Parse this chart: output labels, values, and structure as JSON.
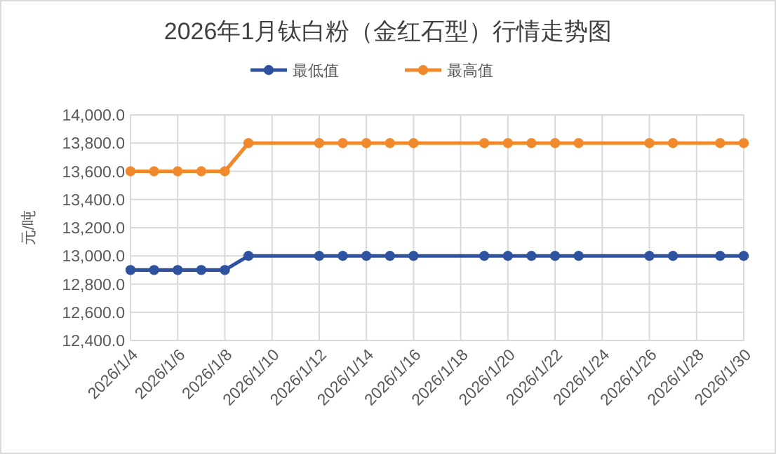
{
  "chart_data": {
    "type": "line",
    "title": "2026年1月钛白粉（金红石型）行情走势图",
    "ylabel": "元/吨",
    "x": [
      "2026-01-04",
      "2026-01-05",
      "2026-01-06",
      "2026-01-07",
      "2026-01-08",
      "2026-01-09",
      "2026-01-12",
      "2026-01-13",
      "2026-01-14",
      "2026-01-15",
      "2026-01-16",
      "2026-01-19",
      "2026-01-20",
      "2026-01-21",
      "2026-01-22",
      "2026-01-23",
      "2026-01-26",
      "2026-01-27",
      "2026-01-29",
      "2026-01-30"
    ],
    "series": [
      {
        "name": "最低值",
        "color": "#2f52a0",
        "values": [
          12900,
          12900,
          12900,
          12900,
          12900,
          13000,
          13000,
          13000,
          13000,
          13000,
          13000,
          13000,
          13000,
          13000,
          13000,
          13000,
          13000,
          13000,
          13000,
          13000
        ]
      },
      {
        "name": "最高值",
        "color": "#f08a2c",
        "values": [
          13600,
          13600,
          13600,
          13600,
          13600,
          13800,
          13800,
          13800,
          13800,
          13800,
          13800,
          13800,
          13800,
          13800,
          13800,
          13800,
          13800,
          13800,
          13800,
          13800
        ]
      }
    ],
    "xlim": [
      "2026-01-04",
      "2026-01-30"
    ],
    "xticks": [
      {
        "value": "2026-01-04",
        "label": "2026/1/4"
      },
      {
        "value": "2026-01-06",
        "label": "2026/1/6"
      },
      {
        "value": "2026-01-08",
        "label": "2026/1/8"
      },
      {
        "value": "2026-01-10",
        "label": "2026/1/10"
      },
      {
        "value": "2026-01-12",
        "label": "2026/1/12"
      },
      {
        "value": "2026-01-14",
        "label": "2026/1/14"
      },
      {
        "value": "2026-01-16",
        "label": "2026/1/16"
      },
      {
        "value": "2026-01-18",
        "label": "2026/1/18"
      },
      {
        "value": "2026-01-20",
        "label": "2026/1/20"
      },
      {
        "value": "2026-01-22",
        "label": "2026/1/22"
      },
      {
        "value": "2026-01-24",
        "label": "2026/1/24"
      },
      {
        "value": "2026-01-26",
        "label": "2026/1/26"
      },
      {
        "value": "2026-01-28",
        "label": "2026/1/28"
      },
      {
        "value": "2026-01-30",
        "label": "2026/1/30"
      }
    ],
    "ylim": [
      12400,
      14000
    ],
    "yticks": [
      {
        "value": 12400,
        "label": "12,400.0"
      },
      {
        "value": 12600,
        "label": "12,600.0"
      },
      {
        "value": 12800,
        "label": "12,800.0"
      },
      {
        "value": 13000,
        "label": "13,000.0"
      },
      {
        "value": 13200,
        "label": "13,200.0"
      },
      {
        "value": 13400,
        "label": "13,400.0"
      },
      {
        "value": 13600,
        "label": "13,600.0"
      },
      {
        "value": 13800,
        "label": "13,800.0"
      },
      {
        "value": 14000,
        "label": "14,000.0"
      }
    ],
    "grid": true,
    "legend": "top",
    "marker": "circle",
    "line_style": "solid"
  }
}
